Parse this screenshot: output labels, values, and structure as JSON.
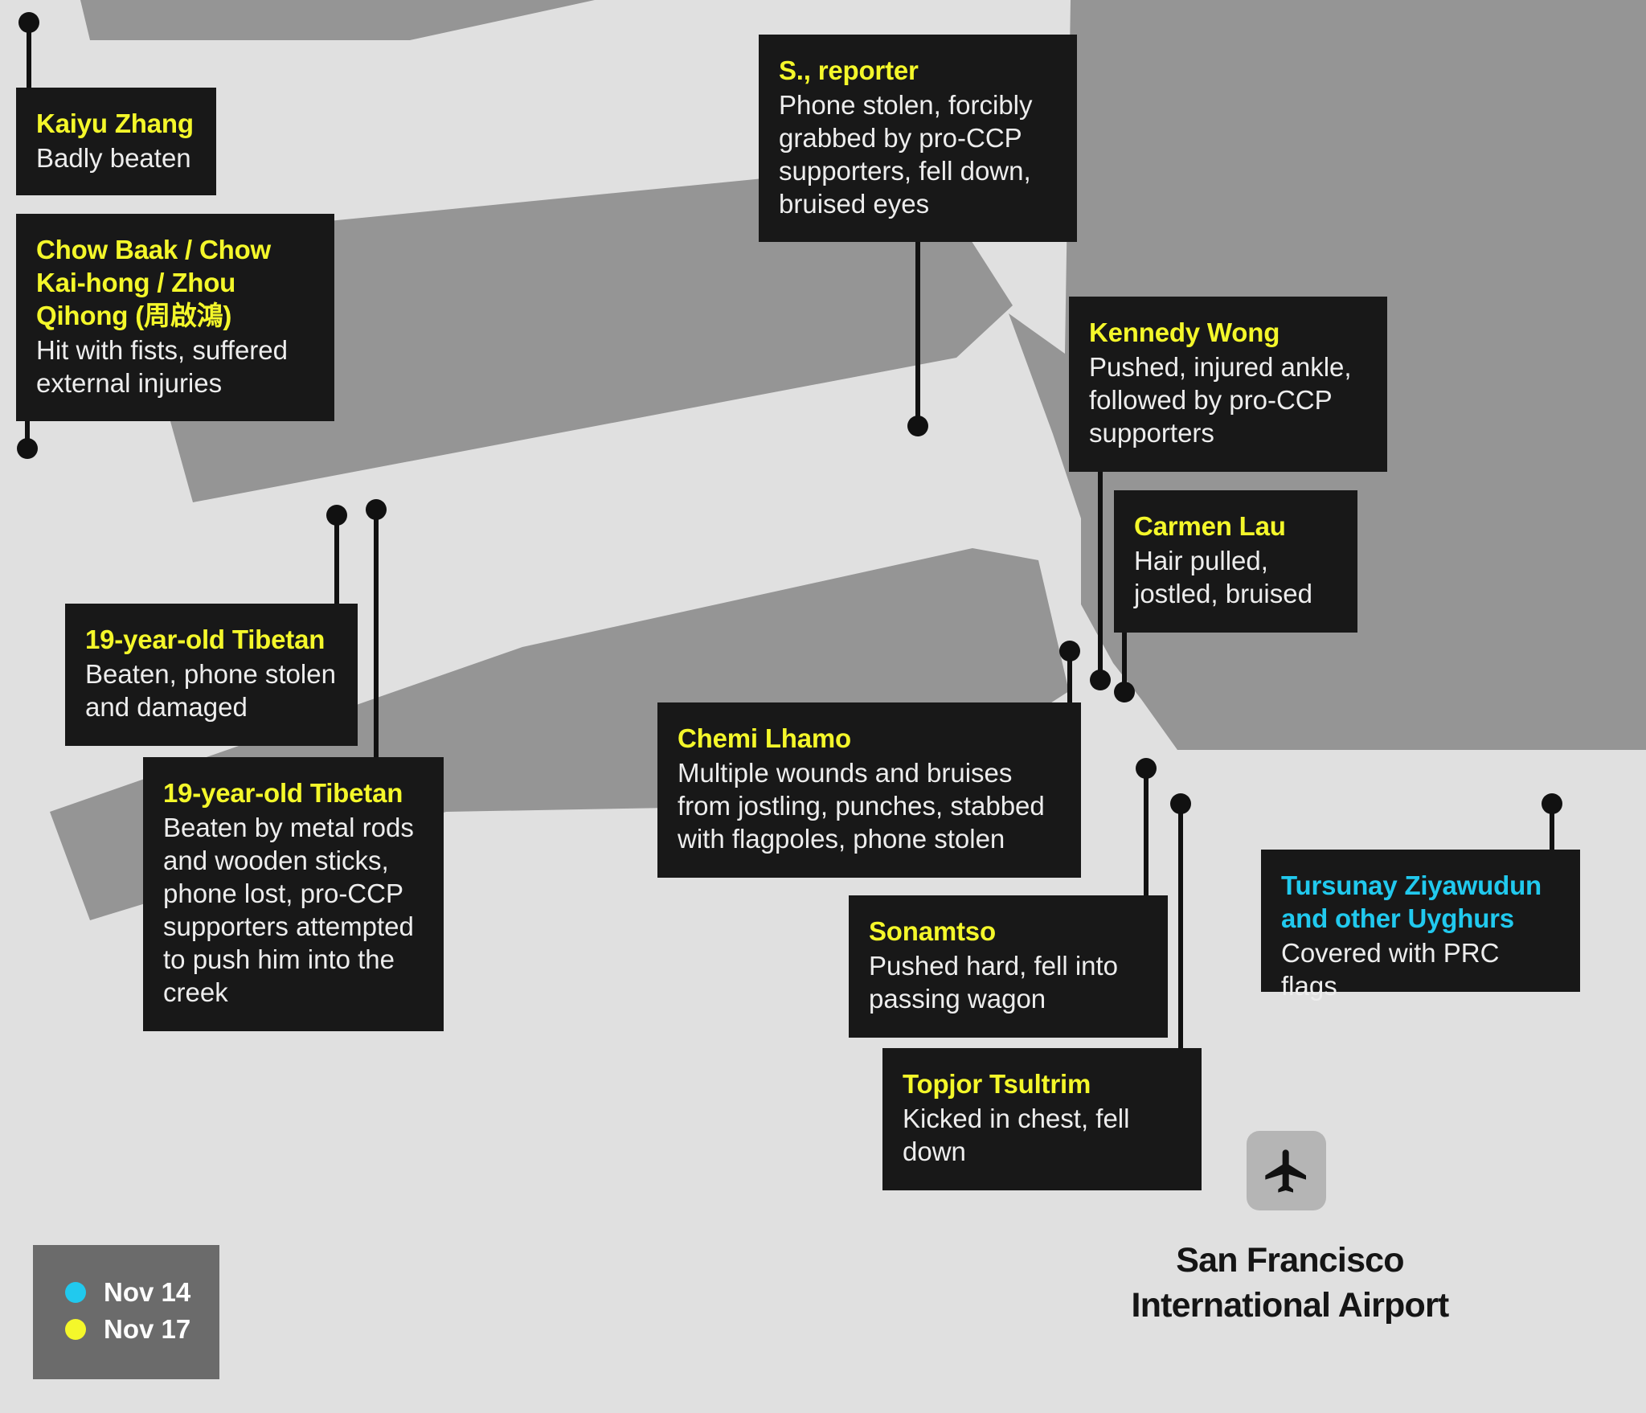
{
  "colors": {
    "background": "#e0e0e0",
    "road": "#959595",
    "label_bg": "#181818",
    "nov14": "#21c9ee",
    "nov17": "#f4f72a",
    "legend_bg": "#6b6b6b"
  },
  "legend": {
    "items": [
      {
        "label": "Nov 14",
        "color": "#21c9ee"
      },
      {
        "label": "Nov 17",
        "color": "#f4f72a"
      }
    ]
  },
  "airport": {
    "icon": "airplane-icon",
    "name_line1": "San Francisco",
    "name_line2": "International Airport"
  },
  "incidents": [
    {
      "name": "Kaiyu Zhang",
      "desc": "Badly beaten",
      "date": "Nov 17"
    },
    {
      "name": "Chow Baak / Chow Kai-hong / Zhou Qihong (周啟鴻)",
      "desc": "Hit with fists, suffered external injuries",
      "date": "Nov 17"
    },
    {
      "name": "S., reporter",
      "desc": "Phone stolen, forcibly grabbed by pro-CCP supporters, fell down, bruised eyes",
      "date": "Nov 17"
    },
    {
      "name": "Kennedy Wong",
      "desc": "Pushed, injured ankle, followed by pro-CCP supporters",
      "date": "Nov 17"
    },
    {
      "name": "Carmen Lau",
      "desc": "Hair pulled, jostled, bruised",
      "date": "Nov 17"
    },
    {
      "name": "19-year-old Tibetan",
      "desc": "Beaten, phone stolen and damaged",
      "date": "Nov 17"
    },
    {
      "name": "19-year-old Tibetan",
      "desc": "Beaten by metal rods and wooden sticks, phone lost, pro-CCP supporters attempted to push him into the creek",
      "date": "Nov 17"
    },
    {
      "name": "Chemi Lhamo",
      "desc": "Multiple wounds and bruises from jostling, punches, stabbed with flagpoles, phone stolen",
      "date": "Nov 17"
    },
    {
      "name": "Sonamtso",
      "desc": "Pushed hard, fell into passing wagon",
      "date": "Nov 17"
    },
    {
      "name": "Topjor Tsultrim",
      "desc": "Kicked in chest, fell down",
      "date": "Nov 17"
    },
    {
      "name": "Tursunay Ziyawudun and other Uyghurs",
      "desc": "Covered with PRC flags",
      "date": "Nov 14"
    }
  ]
}
